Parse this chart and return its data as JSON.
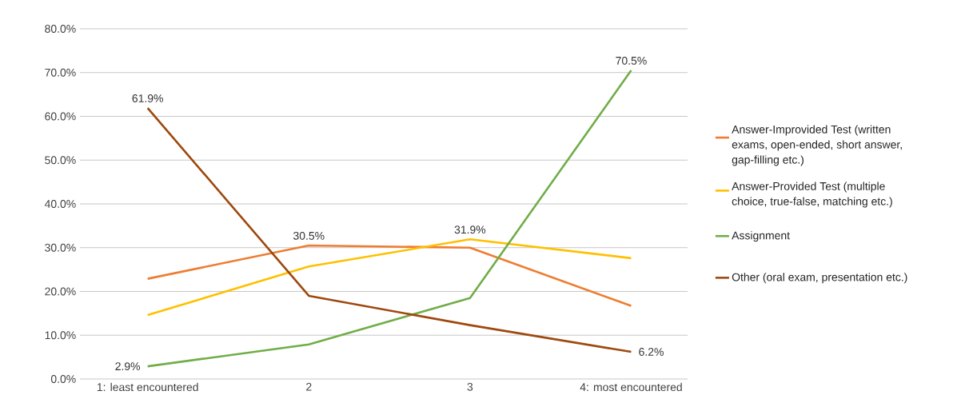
{
  "chart_data": {
    "type": "line",
    "categories": [
      "1: least encountered",
      "2",
      "3",
      "4: most encountered"
    ],
    "ylim": [
      0,
      80
    ],
    "yticks": [
      {
        "value": 0,
        "label": "0.0%"
      },
      {
        "value": 10,
        "label": "10.0%"
      },
      {
        "value": 20,
        "label": "20.0%"
      },
      {
        "value": 30,
        "label": "30.0%"
      },
      {
        "value": 40,
        "label": "40.0%"
      },
      {
        "value": 50,
        "label": "50.0%"
      },
      {
        "value": 60,
        "label": "60.0%"
      },
      {
        "value": 70,
        "label": "70.0%"
      },
      {
        "value": 80,
        "label": "80.0%"
      }
    ],
    "grid": "y",
    "legend": "right",
    "marker": "none",
    "line_style": "solid",
    "series": [
      {
        "name": "Answer-Improvided Test (written exams, open-ended, short answer, gap-filling etc.)",
        "color": "#ed7d31",
        "values": [
          22.9,
          30.5,
          30.0,
          16.7
        ],
        "value_labels": [
          null,
          "30.5%",
          null,
          null
        ]
      },
      {
        "name": "Answer-Provided Test (multiple choice, true-false, matching etc.)",
        "color": "#ffc000",
        "values": [
          14.6,
          25.7,
          31.9,
          27.6
        ],
        "value_labels": [
          null,
          null,
          "31.9%",
          null
        ]
      },
      {
        "name": "Assignment",
        "color": "#70ad47",
        "values": [
          2.9,
          7.9,
          18.5,
          70.5
        ],
        "value_labels": [
          "2.9%",
          null,
          null,
          "70.5%"
        ]
      },
      {
        "name": "Other (oral exam, presentation etc.)",
        "color": "#9e480e",
        "values": [
          61.9,
          19.0,
          12.3,
          6.2
        ],
        "value_labels": [
          "61.9%",
          null,
          null,
          "6.2%"
        ]
      }
    ]
  }
}
